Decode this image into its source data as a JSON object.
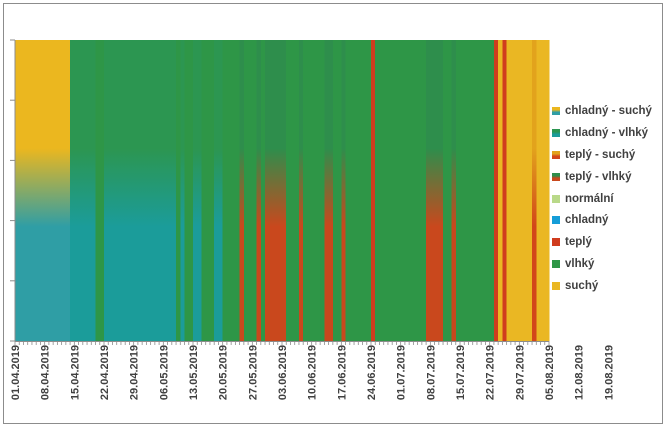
{
  "chart_data": {
    "type": "heatmap",
    "x_tick_labels": [
      "01.04.2019",
      "08.04.2019",
      "15.04.2019",
      "22.04.2019",
      "29.04.2019",
      "06.05.2019",
      "13.05.2019",
      "20.05.2019",
      "27.05.2019",
      "03.06.2019",
      "10.06.2019",
      "17.06.2019",
      "24.06.2019",
      "01.07.2019",
      "08.07.2019",
      "15.07.2019",
      "22.07.2019",
      "29.07.2019",
      "05.08.2019",
      "12.08.2019",
      "19.08.2019"
    ],
    "categories": [
      {
        "key": "chladne_suche",
        "label": "chladný - suchý",
        "color_top": "#EBB71F",
        "color_bottom": "#2F9EA5"
      },
      {
        "key": "chladne_vlhke",
        "label": "chladný - vlhký",
        "color_top": "#2C9651",
        "color_bottom": "#1B9C9A"
      },
      {
        "key": "teple_suche",
        "label": "teplý - suchý",
        "color_top": "#E2A31C",
        "color_bottom": "#D2461A"
      },
      {
        "key": "teple_vlhke",
        "label": "teplý - vlhký",
        "color_top": "#2E8E4C",
        "color_bottom": "#C9481D"
      },
      {
        "key": "normalni",
        "label": "normální",
        "color_top": "#B9D989",
        "color_bottom": "#B9D989"
      },
      {
        "key": "chladne",
        "label": "chladný",
        "color_top": "#159DD8",
        "color_bottom": "#159DD8"
      },
      {
        "key": "teple",
        "label": "teplý",
        "color_top": "#D03C1E",
        "color_bottom": "#D03C1E"
      },
      {
        "key": "vlhke",
        "label": "vlhký",
        "color_top": "#2E9647",
        "color_bottom": "#2E9647"
      },
      {
        "key": "suche",
        "label": "suchý",
        "color_top": "#EAB723",
        "color_bottom": "#EAB723"
      }
    ],
    "day_categories": [
      "chladne_suche",
      "chladne_suche",
      "chladne_suche",
      "chladne_suche",
      "chladne_suche",
      "chladne_suche",
      "chladne_suche",
      "chladne_suche",
      "chladne_suche",
      "chladne_suche",
      "chladne_suche",
      "chladne_suche",
      "chladne_suche",
      "chladne_vlhke",
      "chladne_vlhke",
      "chladne_vlhke",
      "chladne_vlhke",
      "chladne_vlhke",
      "chladne_vlhke",
      "vlhke",
      "vlhke",
      "chladne_vlhke",
      "chladne_vlhke",
      "chladne_vlhke",
      "chladne_vlhke",
      "chladne_vlhke",
      "chladne_vlhke",
      "chladne_vlhke",
      "chladne_vlhke",
      "chladne_vlhke",
      "chladne_vlhke",
      "chladne_vlhke",
      "chladne_vlhke",
      "chladne_vlhke",
      "chladne_vlhke",
      "chladne_vlhke",
      "chladne_vlhke",
      "chladne_vlhke",
      "vlhke",
      "chladne_vlhke",
      "vlhke",
      "vlhke",
      "chladne_vlhke",
      "chladne_vlhke",
      "vlhke",
      "vlhke",
      "vlhke",
      "chladne_vlhke",
      "chladne_vlhke",
      "vlhke",
      "vlhke",
      "vlhke",
      "vlhke",
      "teple_vlhke",
      "vlhke",
      "vlhke",
      "vlhke",
      "teple_vlhke",
      "vlhke",
      "teple_vlhke",
      "teple_vlhke",
      "teple_vlhke",
      "teple_vlhke",
      "teple_vlhke",
      "vlhke",
      "vlhke",
      "vlhke",
      "teple_vlhke",
      "vlhke",
      "vlhke",
      "vlhke",
      "vlhke",
      "vlhke",
      "teple_vlhke",
      "teple_vlhke",
      "vlhke",
      "vlhke",
      "teple_vlhke",
      "vlhke",
      "vlhke",
      "vlhke",
      "vlhke",
      "vlhke",
      "vlhke",
      "teple",
      "vlhke",
      "vlhke",
      "vlhke",
      "vlhke",
      "vlhke",
      "vlhke",
      "vlhke",
      "vlhke",
      "vlhke",
      "vlhke",
      "vlhke",
      "vlhke",
      "teple_vlhke",
      "teple_vlhke",
      "teple_vlhke",
      "teple_vlhke",
      "vlhke",
      "vlhke",
      "teple_vlhke",
      "vlhke",
      "vlhke",
      "vlhke",
      "vlhke",
      "vlhke",
      "vlhke",
      "vlhke",
      "vlhke",
      "vlhke",
      "teple",
      "suche",
      "teple",
      "suche",
      "suche",
      "suche",
      "suche",
      "suche",
      "suche",
      "teple_suche",
      "suche",
      "suche",
      "suche"
    ],
    "xlabel": "",
    "ylabel": "",
    "legend_position": "right",
    "grid": false
  },
  "colors": {
    "axis": "#8c8c8c",
    "frame": "#8c8c8c",
    "text": "#404040"
  }
}
